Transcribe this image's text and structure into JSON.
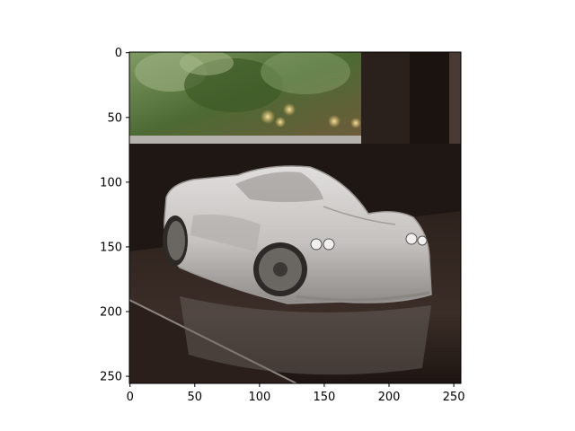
{
  "figure": {
    "image_subject": "white model supercar on a dark wooden windowsill, blurred green foliage through window",
    "x_axis": {
      "ticks": [
        {
          "value": 0,
          "label": "0"
        },
        {
          "value": 50,
          "label": "50"
        },
        {
          "value": 100,
          "label": "100"
        },
        {
          "value": 150,
          "label": "150"
        },
        {
          "value": 200,
          "label": "200"
        },
        {
          "value": 250,
          "label": "250"
        }
      ],
      "range": [
        -0.5,
        255.5
      ]
    },
    "y_axis": {
      "ticks": [
        {
          "value": 0,
          "label": "0"
        },
        {
          "value": 50,
          "label": "50"
        },
        {
          "value": 100,
          "label": "100"
        },
        {
          "value": 150,
          "label": "150"
        },
        {
          "value": 200,
          "label": "200"
        },
        {
          "value": 250,
          "label": "250"
        }
      ],
      "range": [
        -0.5,
        255.5
      ],
      "inverted": true
    },
    "colors": {
      "axis": "#000000",
      "foliage": "#5f7a45",
      "frame_dark": "#1e1714",
      "sill": "#3a2c26",
      "car_body": "#c9c6c3"
    }
  }
}
